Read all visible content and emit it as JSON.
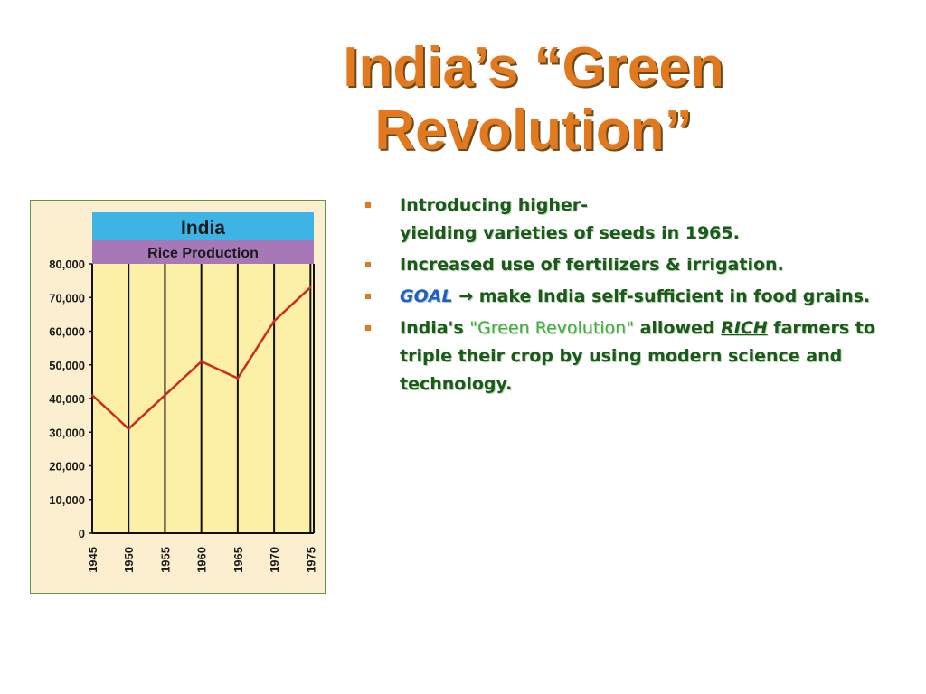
{
  "slide": {
    "title_line1": "India’s “Green",
    "title_line2": "Revolution”",
    "colors": {
      "title": "#e2791f",
      "bullet_text": "#1a5a1a",
      "goal": "#2060c8",
      "quoted": "#3fb03f",
      "bullet_marker": "#e2791f"
    }
  },
  "bullets": [
    {
      "line1": "Introducing higher-",
      "line2": "yielding varieties of seeds in 1965."
    },
    {
      "text": "Increased use of fertilizers & irrigation."
    },
    {
      "goal_label": "GOAL",
      "arrow": "→",
      "text": " make India self-sufficient in food grains."
    },
    {
      "prefix": " India's ",
      "quoted": "\"Green Revolution\"",
      "middle": " allowed ",
      "rich": "RICH",
      "suffix": " farmers to triple their crop by using modern science and technology."
    }
  ],
  "chart_data": {
    "type": "line",
    "title": "India",
    "subtitle": "Rice Production",
    "x": [
      "1945",
      "1950",
      "1955",
      "1960",
      "1965",
      "1970",
      "1975"
    ],
    "series": [
      {
        "values": [
          41000,
          31000,
          41000,
          51000,
          46000,
          63000,
          73000
        ]
      }
    ],
    "ylim": [
      0,
      80000
    ],
    "yticks": [
      "0",
      "10,000",
      "20,000",
      "30,000",
      "40,000",
      "50,000",
      "60,000",
      "70,000",
      "80,000"
    ],
    "ytick_values": [
      0,
      10000,
      20000,
      30000,
      40000,
      50000,
      60000,
      70000,
      80000
    ],
    "grid": "vertical",
    "colors": {
      "title_band": "#3eb4e6",
      "subtitle_band": "#a778b8",
      "plot_bg": "#fbf0a6",
      "line": "#d02a20",
      "frame_bg": "#fbefd0",
      "frame_border": "#5a9a45"
    }
  }
}
